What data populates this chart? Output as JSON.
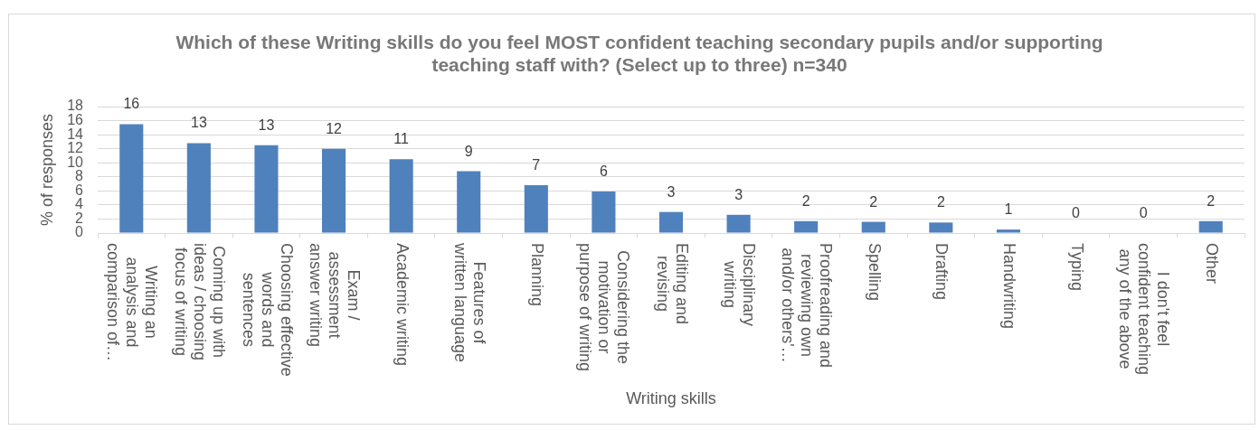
{
  "chart_data": {
    "type": "bar",
    "title": "Which of these Writing skills do you feel MOST confident teaching secondary pupils and/or supporting teaching staff with? (Select up to three) n=340",
    "xlabel": "Writing skills",
    "ylabel": "% of responses",
    "categories": [
      "Writing an analysis and comparison of…",
      "Coming up with ideas / choosing focus of writing",
      "Choosing effective words and sentences",
      "Exam / assessment answer writing",
      "Academic writing",
      "Features of written language",
      "Planning",
      "Considering the motivation or purpose of writing",
      "Editing and revising",
      "Disciplinary writing",
      "Proofreading and reviewing own and/or others'…",
      "Spelling",
      "Drafting",
      "Handwriting",
      "Typing",
      "I don't feel confident teaching any of the above",
      "Other"
    ],
    "values": [
      15.5,
      12.8,
      12.5,
      12.0,
      10.5,
      8.8,
      6.8,
      5.9,
      3.0,
      2.6,
      1.7,
      1.6,
      1.5,
      0.5,
      0,
      0,
      1.7
    ],
    "value_labels": [
      "16",
      "13",
      "13",
      "12",
      "11",
      "9",
      "7",
      "6",
      "3",
      "3",
      "2",
      "2",
      "2",
      "1",
      "0",
      "0",
      "2"
    ],
    "color": "#4f81bd",
    "ylim": [
      0,
      18
    ],
    "yticks": [
      0,
      2,
      4,
      6,
      8,
      10,
      12,
      14,
      16,
      18
    ],
    "grid": "y"
  }
}
